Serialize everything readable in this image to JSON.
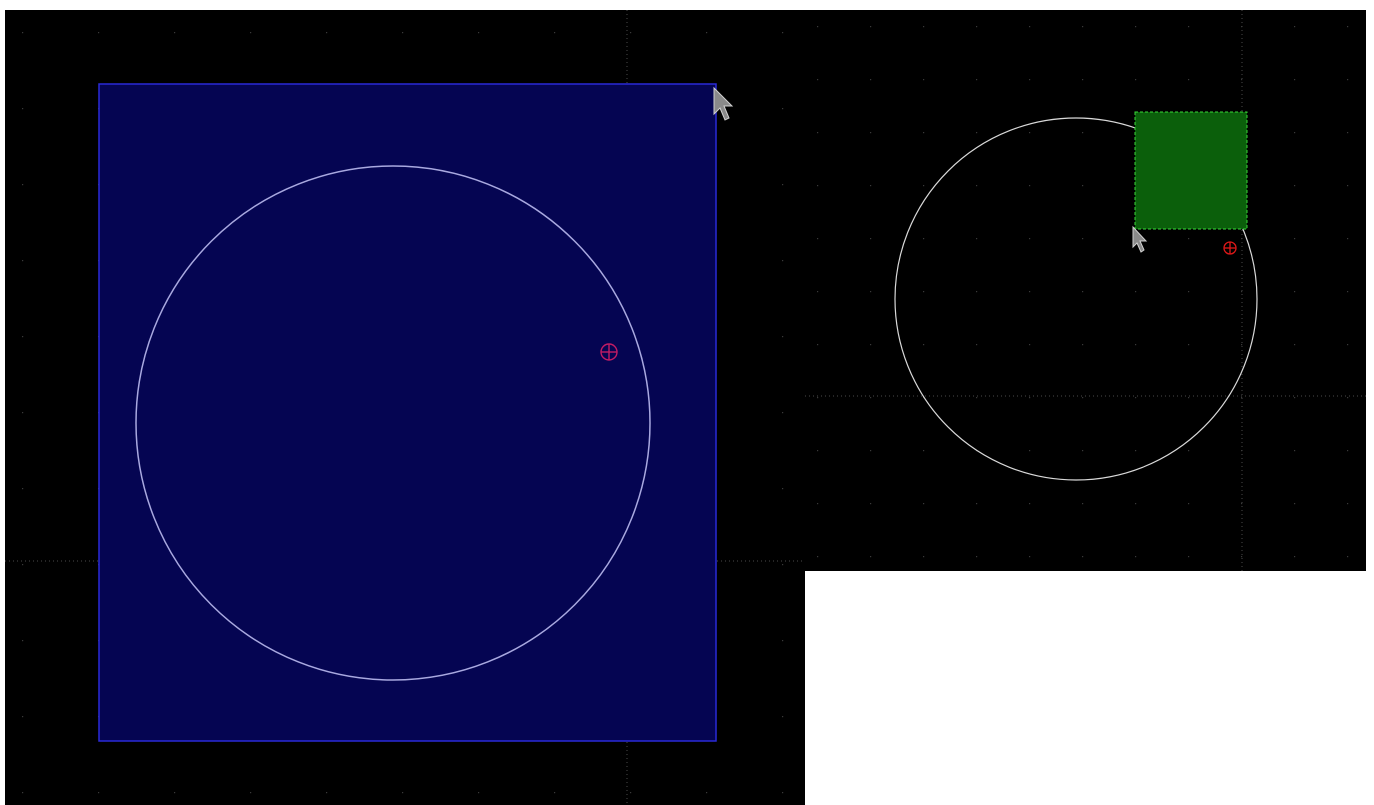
{
  "colors": {
    "canvas_background": "#000000",
    "grid_dot": "#3a3a3a",
    "grid_axis": "#4a4a4a",
    "circle_stroke": "#d9d9d9",
    "selection_box_fill": "#050552",
    "selection_box_stroke": "#2a2ad8",
    "selection_box_circle_stroke": "#a9a9e0",
    "marker_left": "#c21c64",
    "marker_right": "#e01818",
    "drag_box_fill": "#0b5f0b",
    "drag_box_stroke": "#39d839",
    "cursor_fill": "#8a8a8a",
    "cursor_stroke": "#d0d0d0"
  },
  "left_view": {
    "icons": {
      "origin_marker": "crosshair-circle-icon",
      "cursor": "arrow-pointer-icon"
    }
  },
  "right_view": {
    "icons": {
      "origin_marker": "crosshair-circle-icon",
      "cursor": "arrow-pointer-icon"
    }
  }
}
